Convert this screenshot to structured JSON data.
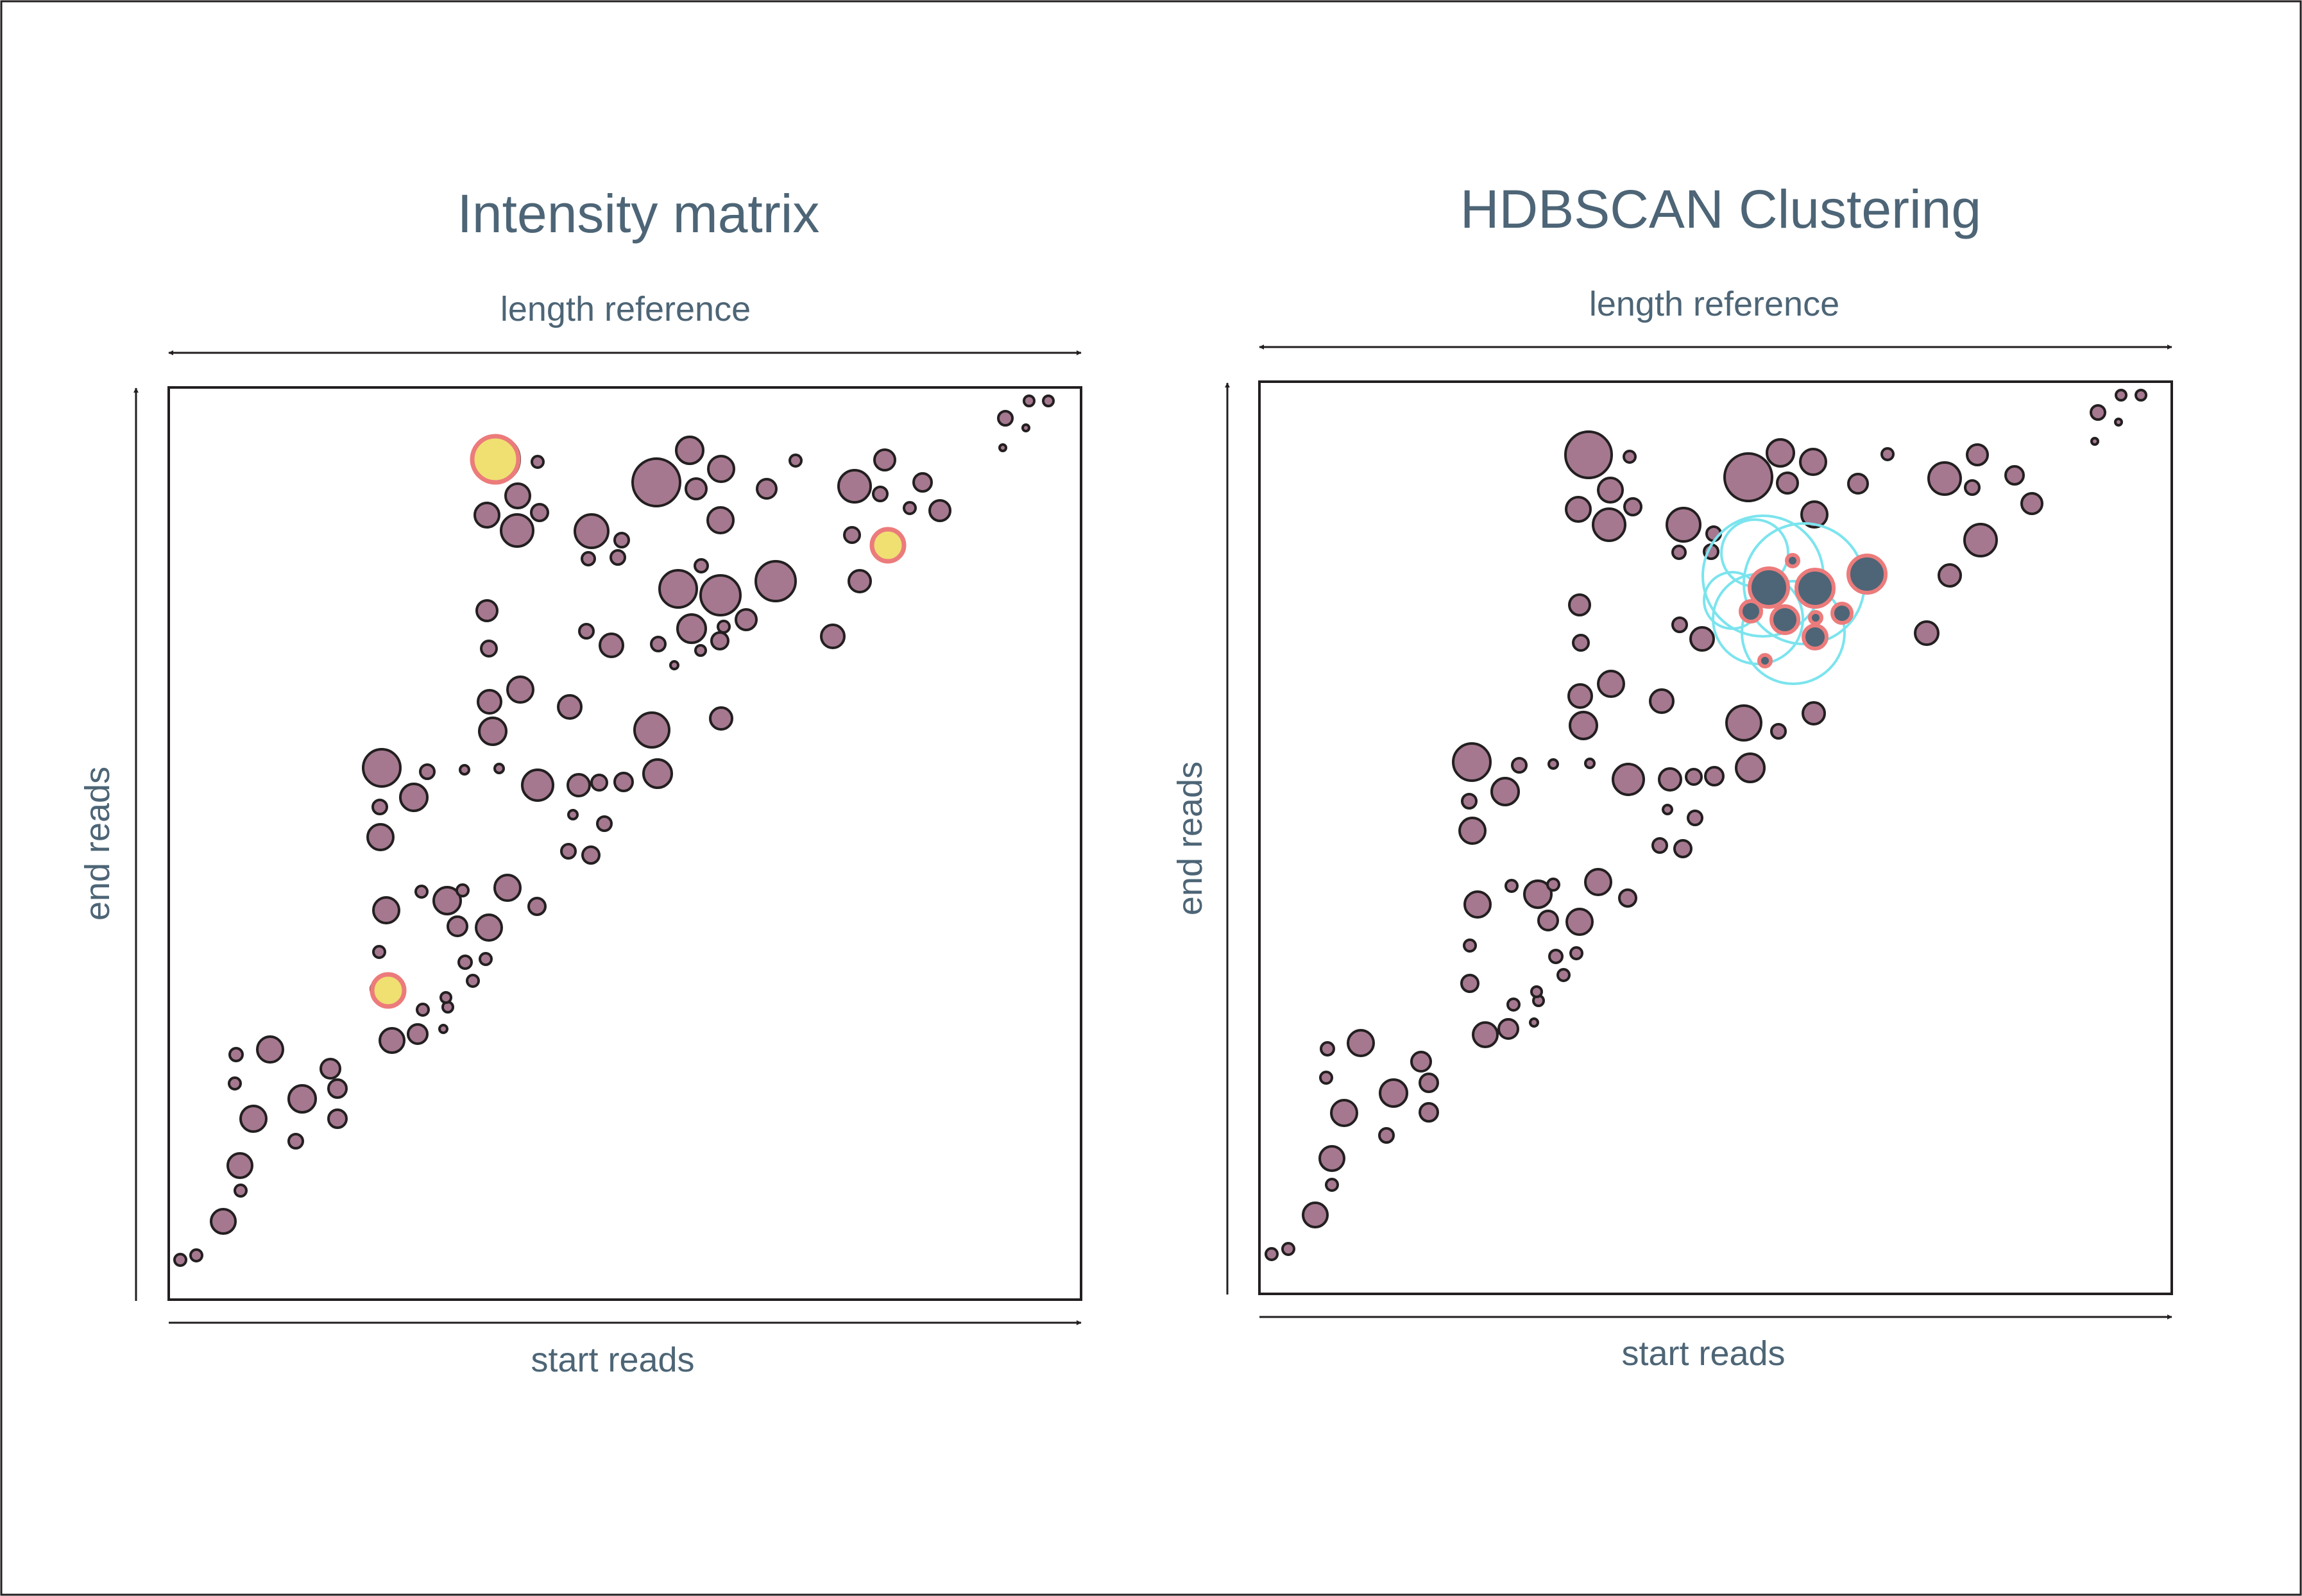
{
  "colors": {
    "text": "#4d6576",
    "point_fill": "#a5788f",
    "point_stroke": "#231f20",
    "highlight_fill": "#efe071",
    "highlight_stroke": "#ec7b7b",
    "cluster_fill": "#4d6576",
    "cluster_ring": "#7be4ee",
    "frame": "#231f20"
  },
  "panels": [
    {
      "title": "Intensity matrix",
      "top_axis_label": "length reference",
      "x_axis_label": "start reads",
      "y_axis_label": "end reads"
    },
    {
      "title": "HDBSCAN Clustering",
      "top_axis_label": "length reference",
      "x_axis_label": "start reads",
      "y_axis_label": "end reads"
    }
  ]
}
